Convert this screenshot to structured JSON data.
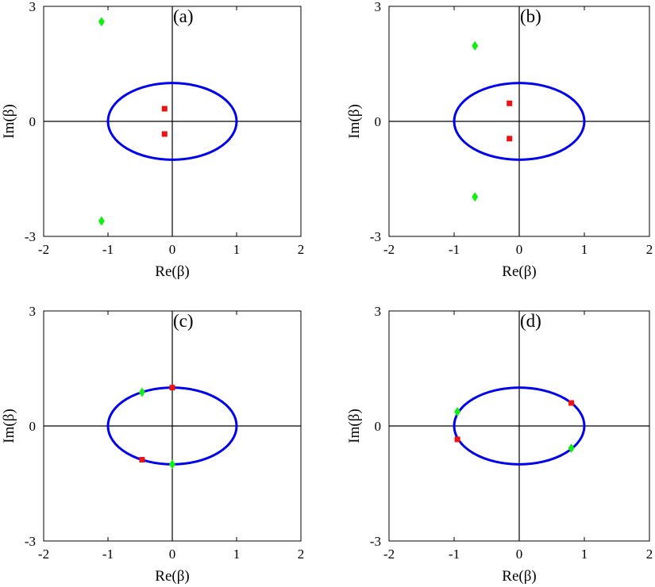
{
  "chart_data": [
    {
      "type": "scatter",
      "panel_label": "(a)",
      "xlabel": "Re(β)",
      "ylabel": "Im(β)",
      "xlim": [
        -2,
        2
      ],
      "ylim": [
        -3,
        3
      ],
      "xticks": [
        "-2",
        "-1",
        "0",
        "1",
        "2"
      ],
      "yticks": [
        "3",
        "0",
        "-3"
      ],
      "grid": false,
      "unit_circle": {
        "center": [
          0,
          0
        ],
        "radius": 1,
        "color": "#0000ee"
      },
      "series": [
        {
          "marker": "square",
          "color": "#ee1111",
          "points": [
            [
              -0.12,
              0.33
            ],
            [
              -0.12,
              -0.33
            ]
          ]
        },
        {
          "marker": "diamond",
          "color": "#11ee11",
          "points": [
            [
              -1.1,
              2.6
            ],
            [
              -1.1,
              -2.6
            ]
          ]
        }
      ]
    },
    {
      "type": "scatter",
      "panel_label": "(b)",
      "xlabel": "Re(β)",
      "ylabel": "Im(β)",
      "xlim": [
        -2,
        2
      ],
      "ylim": [
        -3,
        3
      ],
      "xticks": [
        "-2",
        "-1",
        "0",
        "1",
        "2"
      ],
      "yticks": [
        "3",
        "0",
        "-3"
      ],
      "grid": false,
      "unit_circle": {
        "center": [
          0,
          0
        ],
        "radius": 1,
        "color": "#0000ee"
      },
      "series": [
        {
          "marker": "square",
          "color": "#ee1111",
          "points": [
            [
              -0.15,
              0.47
            ],
            [
              -0.15,
              -0.45
            ]
          ]
        },
        {
          "marker": "diamond",
          "color": "#11ee11",
          "points": [
            [
              -0.68,
              1.97
            ],
            [
              -0.68,
              -1.97
            ]
          ]
        }
      ]
    },
    {
      "type": "scatter",
      "panel_label": "(c)",
      "xlabel": "Re(β)",
      "ylabel": "Im(β)",
      "xlim": [
        -2,
        2
      ],
      "ylim": [
        -3,
        3
      ],
      "xticks": [
        "-2",
        "-1",
        "0",
        "1",
        "2"
      ],
      "yticks": [
        "3",
        "0",
        "-3"
      ],
      "grid": false,
      "unit_circle": {
        "center": [
          0,
          0
        ],
        "radius": 1,
        "color": "#0000ee"
      },
      "series": [
        {
          "marker": "square",
          "color": "#ee1111",
          "points": [
            [
              0.0,
              1.0
            ],
            [
              -0.47,
              -0.88
            ]
          ]
        },
        {
          "marker": "diamond",
          "color": "#11ee11",
          "points": [
            [
              -0.47,
              0.88
            ],
            [
              0.0,
              -1.0
            ]
          ]
        }
      ]
    },
    {
      "type": "scatter",
      "panel_label": "(d)",
      "xlabel": "Re(β)",
      "ylabel": "Im(β)",
      "xlim": [
        -2,
        2
      ],
      "ylim": [
        -3,
        3
      ],
      "xticks": [
        "-2",
        "-1",
        "0",
        "1",
        "2"
      ],
      "yticks": [
        "3",
        "0",
        "-3"
      ],
      "grid": false,
      "unit_circle": {
        "center": [
          0,
          0
        ],
        "radius": 1,
        "color": "#0000ee"
      },
      "series": [
        {
          "marker": "square",
          "color": "#ee1111",
          "points": [
            [
              0.8,
              0.6
            ],
            [
              -0.95,
              -0.35
            ]
          ]
        },
        {
          "marker": "diamond",
          "color": "#11ee11",
          "points": [
            [
              -0.95,
              0.37
            ],
            [
              0.8,
              -0.58
            ]
          ]
        }
      ]
    }
  ]
}
